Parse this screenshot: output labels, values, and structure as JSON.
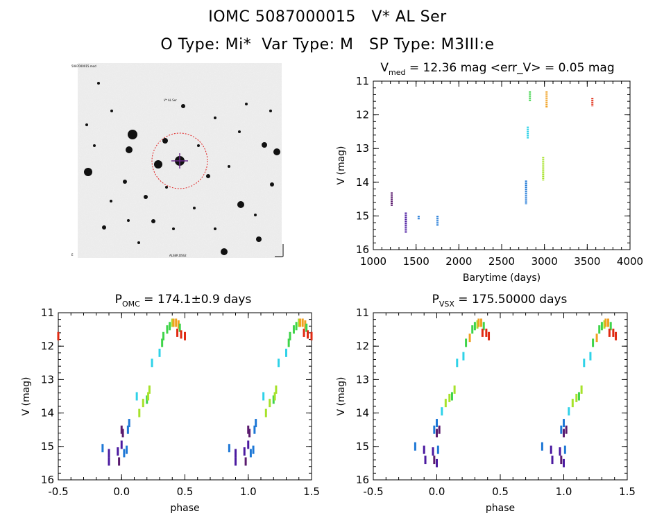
{
  "header": {
    "title_line1": "IOMC 5087000015   V* AL Ser",
    "title_line2": "O Type: Mi*  Var Type: M   SP Type: M3III:e"
  },
  "finder": {
    "label_top_left": "5087000015.mod",
    "label_top_center": "V* AL Ser",
    "label_bottom": "ALSER.DSS2"
  },
  "colors": {
    "purple": "#5a1a6e",
    "indigo": "#4b1aa0",
    "blue": "#1e78d6",
    "cyan": "#2fd2e8",
    "green": "#3fd44a",
    "yellowgreen": "#a6e22a",
    "orange": "#f0a020",
    "red": "#e02a12"
  },
  "chart_data": [
    {
      "type": "scatter",
      "title": "V_med = 12.36 mag <err_V> = 0.05 mag",
      "title_main": "V",
      "title_sub": "med",
      "title_rest": " = 12.36 mag <err_V> = 0.05 mag",
      "xlabel": "Barytime (days)",
      "ylabel": "V (mag)",
      "xlim": [
        1000,
        4000
      ],
      "ylim": [
        16,
        11
      ],
      "xticks": [
        "1000",
        "1500",
        "2000",
        "2500",
        "3000",
        "3500",
        "4000"
      ],
      "yticks": [
        "11",
        "12",
        "13",
        "14",
        "15",
        "16"
      ],
      "segments": [
        {
          "color": "purple",
          "x": 1215,
          "y0": 14.3,
          "y1": 14.7
        },
        {
          "color": "indigo",
          "x": 1380,
          "y0": 14.9,
          "y1": 15.5
        },
        {
          "color": "blue",
          "x": 1530,
          "y0": 15.0,
          "y1": 15.1
        },
        {
          "color": "blue",
          "x": 1750,
          "y0": 15.0,
          "y1": 15.3
        },
        {
          "color": "blue",
          "x": 2785,
          "y0": 13.95,
          "y1": 14.65
        },
        {
          "color": "cyan",
          "x": 2805,
          "y0": 12.35,
          "y1": 12.7
        },
        {
          "color": "green",
          "x": 2830,
          "y0": 11.3,
          "y1": 11.6
        },
        {
          "color": "yellowgreen",
          "x": 2985,
          "y0": 13.25,
          "y1": 13.95
        },
        {
          "color": "orange",
          "x": 3025,
          "y0": 11.3,
          "y1": 11.8
        },
        {
          "color": "red",
          "x": 3560,
          "y0": 11.5,
          "y1": 11.75
        }
      ]
    },
    {
      "type": "scatter",
      "title_main": "P",
      "title_sub": "OMC",
      "title_rest": " = 174.1±0.9 days",
      "xlabel": "phase",
      "ylabel": "V (mag)",
      "xlim": [
        -0.5,
        1.5
      ],
      "ylim": [
        16,
        11
      ],
      "xticks": [
        "-0.5",
        "0.0",
        "0.5",
        "1.0",
        "1.5"
      ],
      "yticks": [
        "11",
        "12",
        "13",
        "14",
        "15",
        "16"
      ],
      "points": [
        {
          "color": "blue",
          "x": -0.15,
          "y": 15.05
        },
        {
          "color": "indigo",
          "x": -0.1,
          "y": 15.2
        },
        {
          "color": "indigo",
          "x": -0.1,
          "y": 15.45
        },
        {
          "color": "indigo",
          "x": -0.03,
          "y": 15.15
        },
        {
          "color": "purple",
          "x": -0.02,
          "y": 15.45
        },
        {
          "color": "indigo",
          "x": 0.0,
          "y": 14.95
        },
        {
          "color": "purple",
          "x": 0.0,
          "y": 14.5
        },
        {
          "color": "purple",
          "x": 0.01,
          "y": 14.6
        },
        {
          "color": "blue",
          "x": 0.02,
          "y": 15.2
        },
        {
          "color": "blue",
          "x": 0.04,
          "y": 15.1
        },
        {
          "color": "blue",
          "x": 0.05,
          "y": 14.5
        },
        {
          "color": "blue",
          "x": 0.06,
          "y": 14.3
        },
        {
          "color": "cyan",
          "x": 0.12,
          "y": 13.5
        },
        {
          "color": "yellowgreen",
          "x": 0.14,
          "y": 14.0
        },
        {
          "color": "yellowgreen",
          "x": 0.17,
          "y": 13.7
        },
        {
          "color": "green",
          "x": 0.2,
          "y": 13.6
        },
        {
          "color": "yellowgreen",
          "x": 0.21,
          "y": 13.5
        },
        {
          "color": "yellowgreen",
          "x": 0.22,
          "y": 13.3
        },
        {
          "color": "cyan",
          "x": 0.24,
          "y": 12.5
        },
        {
          "color": "cyan",
          "x": 0.3,
          "y": 12.2
        },
        {
          "color": "green",
          "x": 0.32,
          "y": 11.9
        },
        {
          "color": "green",
          "x": 0.33,
          "y": 11.7
        },
        {
          "color": "green",
          "x": 0.36,
          "y": 11.5
        },
        {
          "color": "green",
          "x": 0.38,
          "y": 11.4
        },
        {
          "color": "yellowgreen",
          "x": 0.4,
          "y": 11.3
        },
        {
          "color": "orange",
          "x": 0.41,
          "y": 11.3
        },
        {
          "color": "orange",
          "x": 0.43,
          "y": 11.3
        },
        {
          "color": "orange",
          "x": 0.45,
          "y": 11.35
        },
        {
          "color": "green",
          "x": 0.46,
          "y": 11.45
        },
        {
          "color": "red",
          "x": 0.44,
          "y": 11.6
        },
        {
          "color": "red",
          "x": 0.47,
          "y": 11.65
        },
        {
          "color": "red",
          "x": 0.5,
          "y": 11.7
        }
      ]
    },
    {
      "type": "scatter",
      "title_main": "P",
      "title_sub": "VSX",
      "title_rest": " = 175.50000 days",
      "xlabel": "phase",
      "ylabel": "V (mag)",
      "xlim": [
        -0.5,
        1.5
      ],
      "ylim": [
        16,
        11
      ],
      "xticks": [
        "-0.5",
        "0.0",
        "0.5",
        "1.0",
        "1.5"
      ],
      "yticks": [
        "11",
        "12",
        "13",
        "14",
        "15",
        "16"
      ],
      "points": [
        {
          "color": "blue",
          "x": -0.17,
          "y": 15.0
        },
        {
          "color": "indigo",
          "x": -0.1,
          "y": 15.1
        },
        {
          "color": "indigo",
          "x": -0.09,
          "y": 15.4
        },
        {
          "color": "indigo",
          "x": -0.03,
          "y": 15.15
        },
        {
          "color": "purple",
          "x": -0.02,
          "y": 15.4
        },
        {
          "color": "blue",
          "x": -0.02,
          "y": 14.5
        },
        {
          "color": "blue",
          "x": 0.0,
          "y": 14.3
        },
        {
          "color": "purple",
          "x": 0.0,
          "y": 14.6
        },
        {
          "color": "purple",
          "x": 0.02,
          "y": 14.5
        },
        {
          "color": "blue",
          "x": 0.01,
          "y": 15.1
        },
        {
          "color": "indigo",
          "x": 0.0,
          "y": 15.5
        },
        {
          "color": "cyan",
          "x": 0.04,
          "y": 13.95
        },
        {
          "color": "yellowgreen",
          "x": 0.07,
          "y": 13.7
        },
        {
          "color": "yellowgreen",
          "x": 0.1,
          "y": 13.55
        },
        {
          "color": "green",
          "x": 0.12,
          "y": 13.5
        },
        {
          "color": "yellowgreen",
          "x": 0.14,
          "y": 13.3
        },
        {
          "color": "cyan",
          "x": 0.16,
          "y": 12.5
        },
        {
          "color": "cyan",
          "x": 0.21,
          "y": 12.3
        },
        {
          "color": "green",
          "x": 0.23,
          "y": 11.9
        },
        {
          "color": "orange",
          "x": 0.26,
          "y": 11.75
        },
        {
          "color": "green",
          "x": 0.28,
          "y": 11.5
        },
        {
          "color": "green",
          "x": 0.3,
          "y": 11.4
        },
        {
          "color": "yellowgreen",
          "x": 0.32,
          "y": 11.35
        },
        {
          "color": "orange",
          "x": 0.33,
          "y": 11.3
        },
        {
          "color": "orange",
          "x": 0.35,
          "y": 11.3
        },
        {
          "color": "green",
          "x": 0.37,
          "y": 11.4
        },
        {
          "color": "red",
          "x": 0.36,
          "y": 11.6
        },
        {
          "color": "red",
          "x": 0.39,
          "y": 11.6
        },
        {
          "color": "red",
          "x": 0.41,
          "y": 11.7
        }
      ]
    }
  ]
}
